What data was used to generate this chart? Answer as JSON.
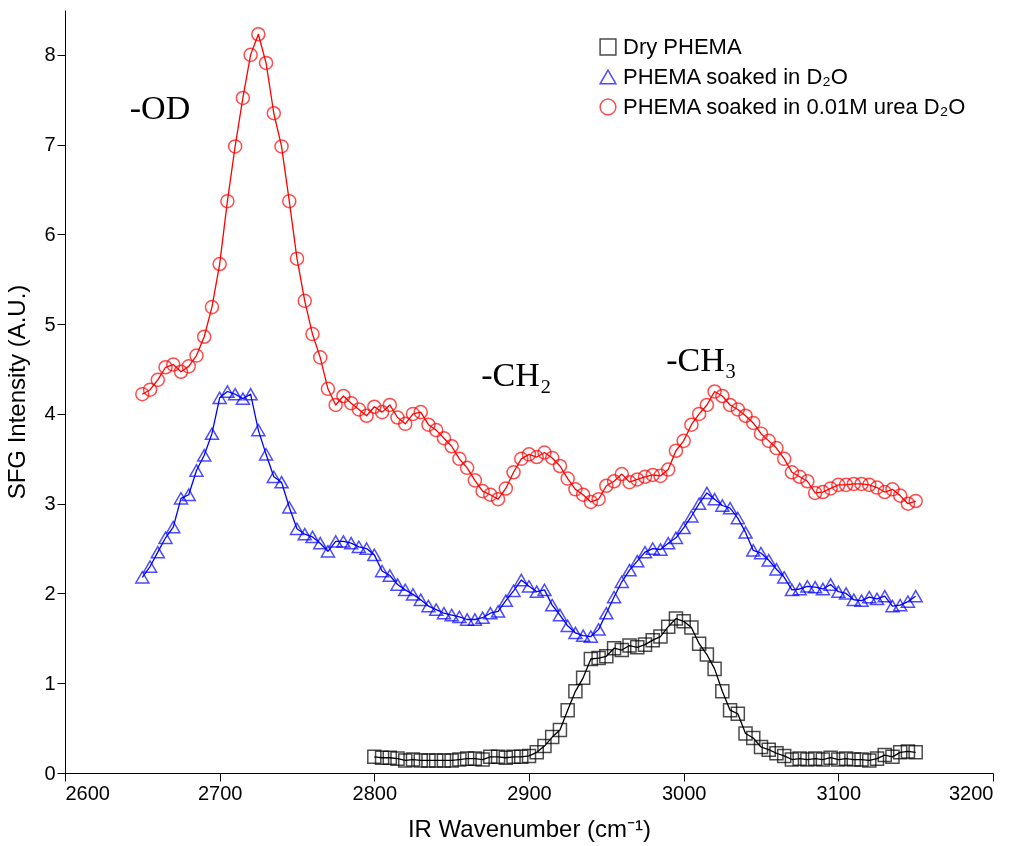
{
  "chart_data": {
    "type": "line",
    "xlabel": "IR Wavenumber (cm⁻¹)",
    "ylabel": "SFG Intensity (A.U.)",
    "xlim": [
      2600,
      3200
    ],
    "xticks": [
      2600,
      2700,
      2800,
      2900,
      3000,
      3100,
      3200
    ],
    "ylim": [
      0,
      8.5
    ],
    "yticks": [
      0,
      1,
      2,
      3,
      4,
      5,
      6,
      7,
      8
    ],
    "grid": false,
    "legend": "top right",
    "line_style": "solid",
    "annotations": [
      "-OD",
      "-CH₂",
      "-CH₃"
    ],
    "series": [
      {
        "name": "Dry PHEMA",
        "color": "#000000",
        "marker": "square",
        "x": [
          2800,
          2805,
          2810,
          2815,
          2820,
          2825,
          2830,
          2835,
          2840,
          2845,
          2850,
          2855,
          2860,
          2865,
          2870,
          2875,
          2880,
          2885,
          2890,
          2895,
          2900,
          2905,
          2910,
          2915,
          2920,
          2925,
          2930,
          2935,
          2940,
          2945,
          2950,
          2955,
          2960,
          2965,
          2970,
          2975,
          2980,
          2985,
          2990,
          2995,
          3000,
          3005,
          3010,
          3015,
          3020,
          3025,
          3030,
          3035,
          3040,
          3045,
          3050,
          3055,
          3060,
          3065,
          3070,
          3075,
          3080,
          3085,
          3090,
          3095,
          3100,
          3105,
          3110,
          3115,
          3120,
          3125,
          3130,
          3135,
          3140,
          3145,
          3150
        ],
        "values": [
          0.18,
          0.17,
          0.17,
          0.16,
          0.14,
          0.15,
          0.14,
          0.14,
          0.14,
          0.14,
          0.14,
          0.15,
          0.16,
          0.16,
          0.15,
          0.18,
          0.18,
          0.17,
          0.18,
          0.18,
          0.19,
          0.23,
          0.3,
          0.4,
          0.48,
          0.7,
          0.91,
          1.06,
          1.27,
          1.28,
          1.3,
          1.39,
          1.37,
          1.42,
          1.4,
          1.43,
          1.48,
          1.52,
          1.63,
          1.72,
          1.69,
          1.62,
          1.44,
          1.32,
          1.16,
          0.91,
          0.7,
          0.66,
          0.44,
          0.39,
          0.29,
          0.26,
          0.22,
          0.19,
          0.15,
          0.16,
          0.15,
          0.16,
          0.15,
          0.17,
          0.15,
          0.16,
          0.15,
          0.15,
          0.14,
          0.16,
          0.2,
          0.18,
          0.23,
          0.24,
          0.23
        ]
      },
      {
        "name": "PHEMA soaked in D₂O",
        "color": "#0000ff",
        "marker": "triangle",
        "x": [
          2650,
          2655,
          2660,
          2665,
          2670,
          2675,
          2680,
          2685,
          2690,
          2695,
          2700,
          2705,
          2710,
          2715,
          2720,
          2725,
          2730,
          2735,
          2740,
          2745,
          2750,
          2755,
          2760,
          2765,
          2770,
          2775,
          2780,
          2785,
          2790,
          2795,
          2800,
          2805,
          2810,
          2815,
          2820,
          2825,
          2830,
          2835,
          2840,
          2845,
          2850,
          2855,
          2860,
          2865,
          2870,
          2875,
          2880,
          2885,
          2890,
          2895,
          2900,
          2905,
          2910,
          2915,
          2920,
          2925,
          2930,
          2935,
          2940,
          2945,
          2950,
          2955,
          2960,
          2965,
          2970,
          2975,
          2980,
          2985,
          2990,
          2995,
          3000,
          3005,
          3010,
          3015,
          3020,
          3025,
          3030,
          3035,
          3040,
          3045,
          3050,
          3055,
          3060,
          3065,
          3070,
          3075,
          3080,
          3085,
          3090,
          3095,
          3100,
          3105,
          3110,
          3115,
          3120,
          3125,
          3130,
          3135,
          3140,
          3145,
          3150
        ],
        "values": [
          2.18,
          2.3,
          2.46,
          2.62,
          2.74,
          3.06,
          3.1,
          3.37,
          3.54,
          3.78,
          4.18,
          4.25,
          4.22,
          4.17,
          4.22,
          3.82,
          3.55,
          3.3,
          3.24,
          2.96,
          2.72,
          2.66,
          2.63,
          2.56,
          2.47,
          2.58,
          2.58,
          2.56,
          2.52,
          2.5,
          2.43,
          2.25,
          2.2,
          2.1,
          2.04,
          1.99,
          1.93,
          1.86,
          1.82,
          1.78,
          1.76,
          1.74,
          1.71,
          1.71,
          1.73,
          1.78,
          1.8,
          1.92,
          2.03,
          2.15,
          2.08,
          2.02,
          2.04,
          1.87,
          1.76,
          1.64,
          1.56,
          1.53,
          1.52,
          1.6,
          1.78,
          1.96,
          2.13,
          2.26,
          2.36,
          2.46,
          2.5,
          2.49,
          2.56,
          2.62,
          2.73,
          2.86,
          3.0,
          3.12,
          3.05,
          2.98,
          2.95,
          2.84,
          2.68,
          2.48,
          2.45,
          2.37,
          2.27,
          2.18,
          2.04,
          2.05,
          2.08,
          2.07,
          2.05,
          2.1,
          2.02,
          2.0,
          1.93,
          1.92,
          1.96,
          1.94,
          1.97,
          1.86,
          1.87,
          1.91,
          1.97
        ]
      },
      {
        "name": "PHEMA soaked in 0.01M urea D₂O",
        "color": "#ff0000",
        "marker": "circle",
        "x": [
          2650,
          2655,
          2660,
          2665,
          2670,
          2675,
          2680,
          2685,
          2690,
          2695,
          2700,
          2705,
          2710,
          2715,
          2720,
          2725,
          2730,
          2735,
          2740,
          2745,
          2750,
          2755,
          2760,
          2765,
          2770,
          2775,
          2780,
          2785,
          2790,
          2795,
          2800,
          2805,
          2810,
          2815,
          2820,
          2825,
          2830,
          2835,
          2840,
          2845,
          2850,
          2855,
          2860,
          2865,
          2870,
          2875,
          2880,
          2885,
          2890,
          2895,
          2900,
          2905,
          2910,
          2915,
          2920,
          2925,
          2930,
          2935,
          2940,
          2945,
          2950,
          2955,
          2960,
          2965,
          2970,
          2975,
          2980,
          2985,
          2990,
          2995,
          3000,
          3005,
          3010,
          3015,
          3020,
          3025,
          3030,
          3035,
          3040,
          3045,
          3050,
          3055,
          3060,
          3065,
          3070,
          3075,
          3080,
          3085,
          3090,
          3095,
          3100,
          3105,
          3110,
          3115,
          3120,
          3125,
          3130,
          3135,
          3140,
          3145,
          3150
        ],
        "values": [
          4.22,
          4.27,
          4.38,
          4.52,
          4.55,
          4.47,
          4.53,
          4.65,
          4.86,
          5.19,
          5.67,
          6.37,
          6.98,
          7.52,
          8.0,
          8.23,
          7.91,
          7.35,
          6.98,
          6.37,
          5.73,
          5.26,
          4.89,
          4.63,
          4.28,
          4.1,
          4.2,
          4.12,
          4.05,
          3.98,
          4.08,
          4.02,
          4.1,
          3.96,
          3.89,
          4.0,
          4.02,
          3.88,
          3.82,
          3.73,
          3.64,
          3.5,
          3.4,
          3.26,
          3.14,
          3.1,
          3.05,
          3.17,
          3.35,
          3.5,
          3.55,
          3.52,
          3.57,
          3.51,
          3.42,
          3.28,
          3.16,
          3.1,
          3.02,
          3.05,
          3.2,
          3.25,
          3.33,
          3.24,
          3.27,
          3.3,
          3.32,
          3.31,
          3.38,
          3.59,
          3.7,
          3.88,
          4.0,
          4.1,
          4.25,
          4.2,
          4.1,
          4.05,
          3.98,
          3.9,
          3.78,
          3.7,
          3.62,
          3.5,
          3.35,
          3.3,
          3.25,
          3.12,
          3.13,
          3.17,
          3.21,
          3.21,
          3.22,
          3.22,
          3.21,
          3.18,
          3.13,
          3.16,
          3.09,
          3.0,
          3.03
        ]
      }
    ]
  }
}
